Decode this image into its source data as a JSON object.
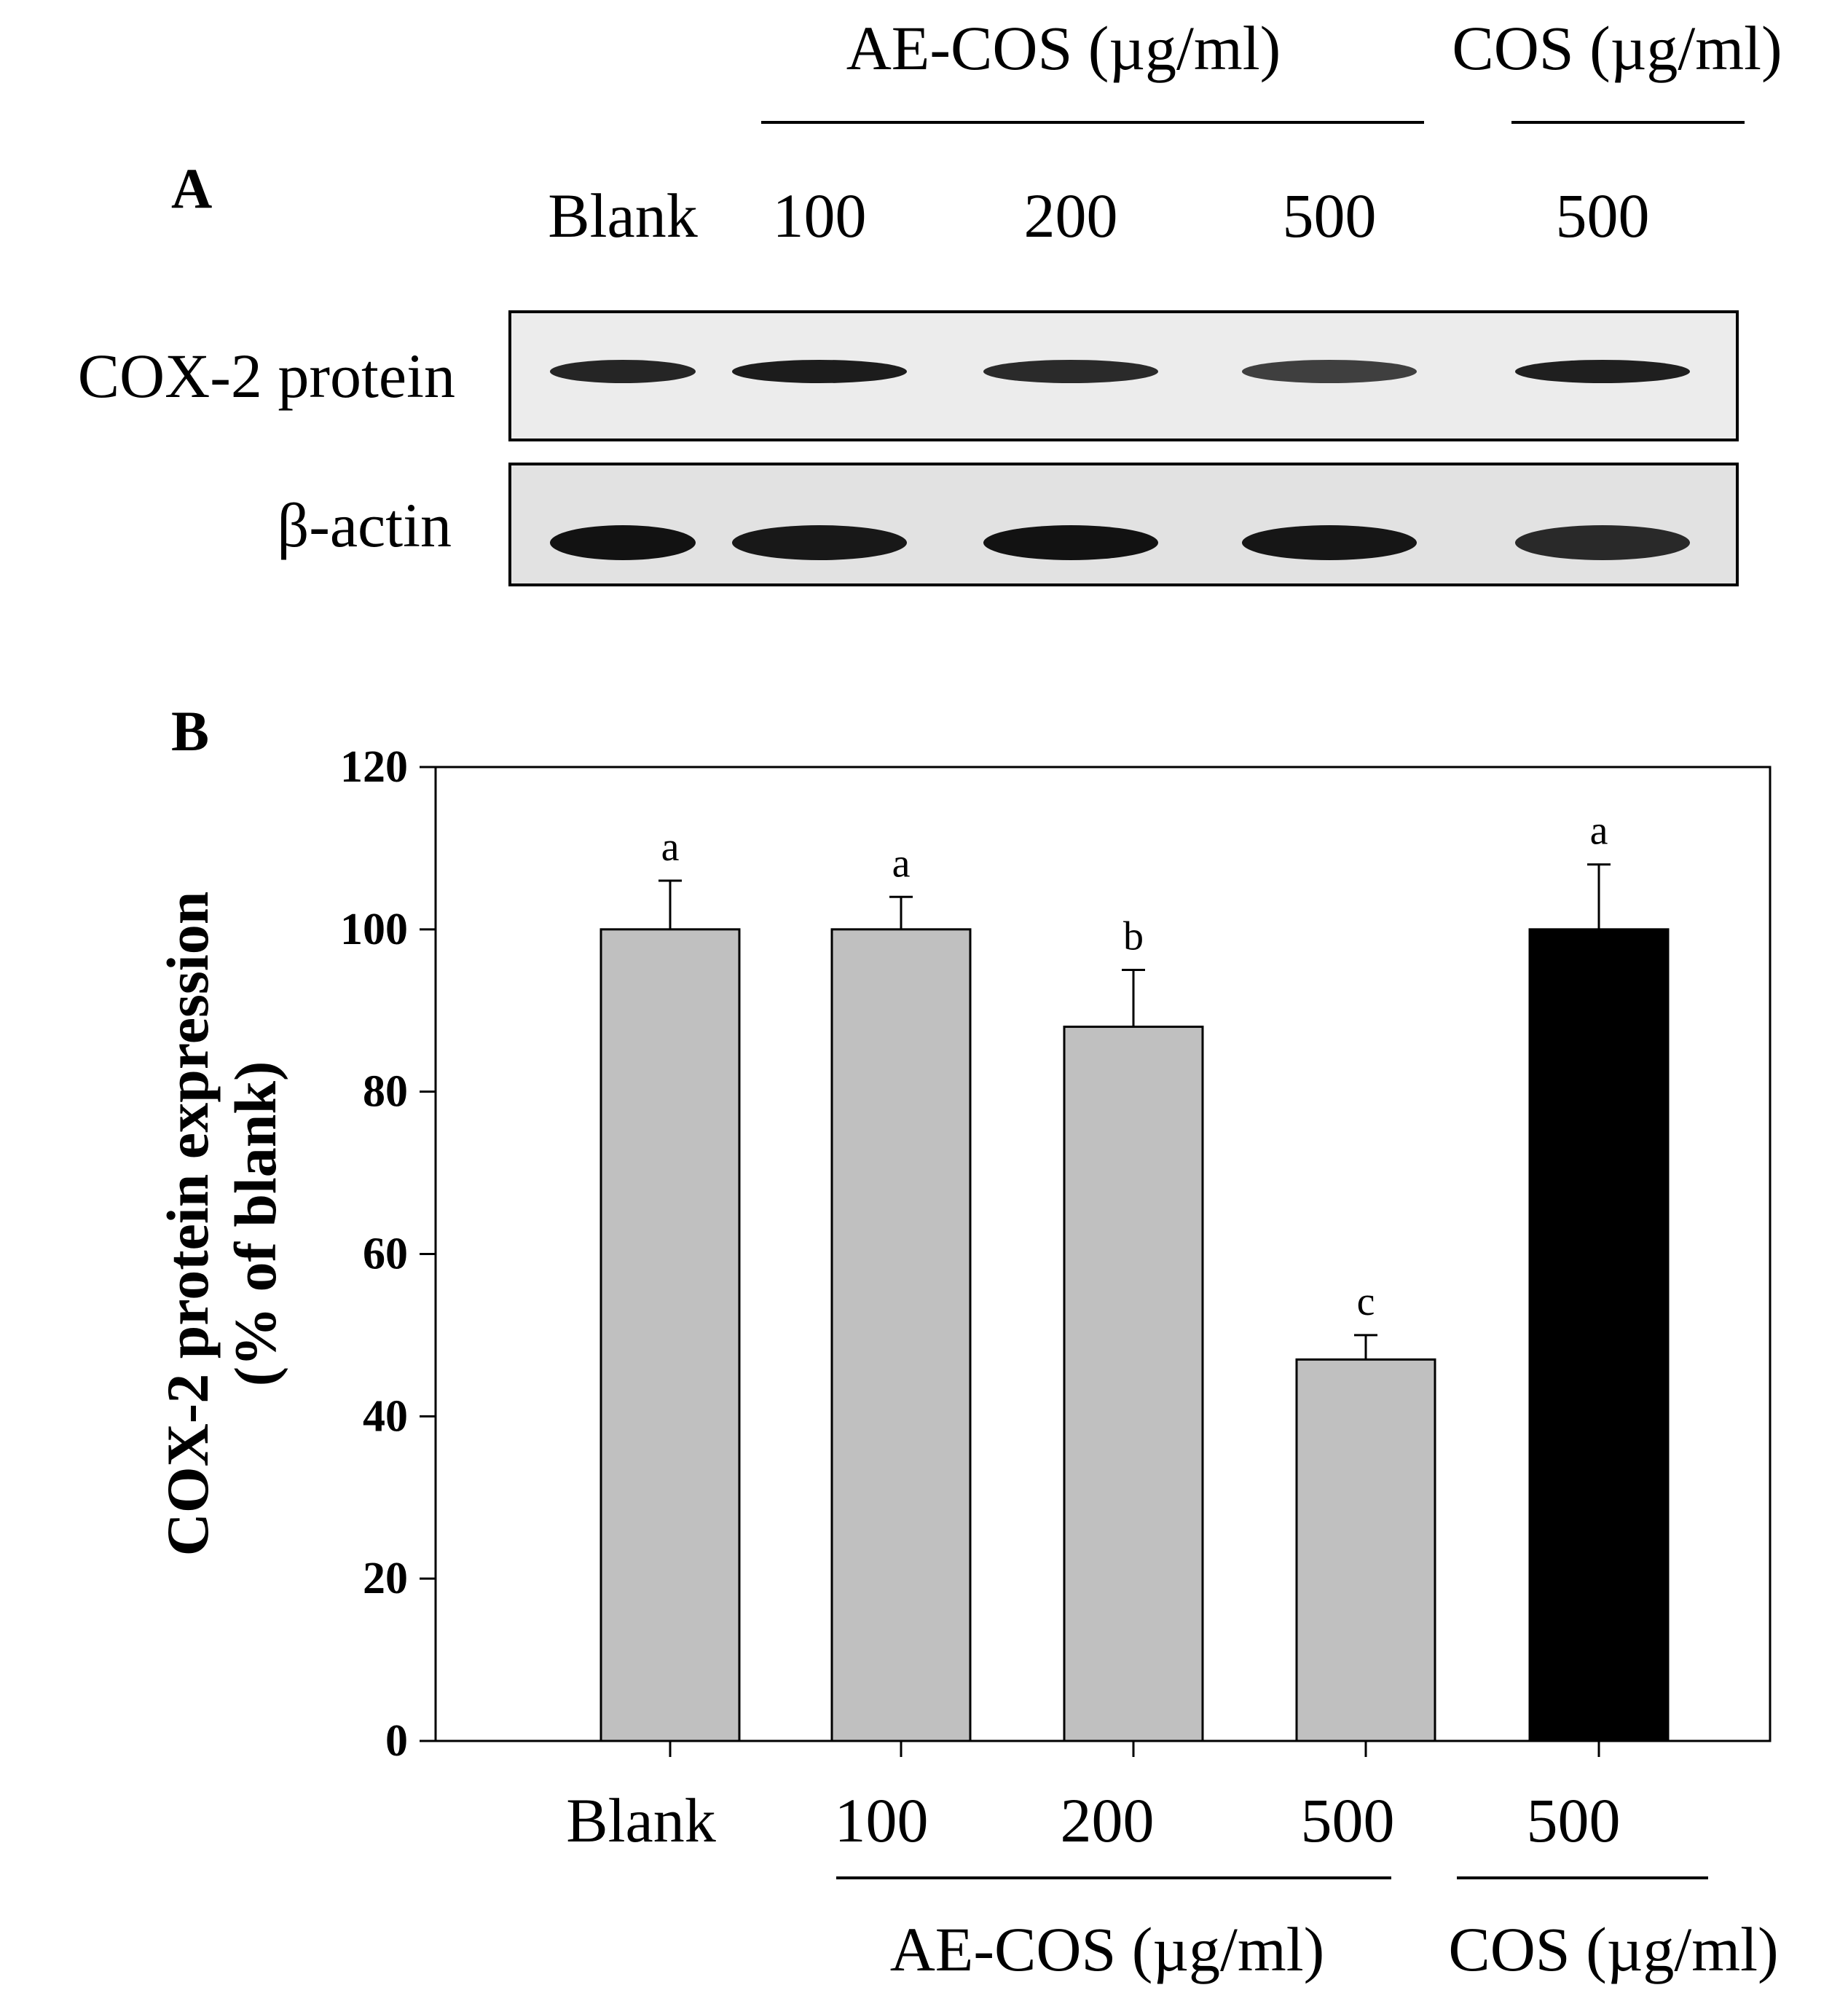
{
  "panel_a": {
    "label": "A",
    "group_headers": [
      "AE-COS (µg/ml)",
      "COS (µg/ml)"
    ],
    "lane_labels": [
      "Blank",
      "100",
      "200",
      "500",
      "500"
    ],
    "rows": [
      {
        "label": "COX-2 protein",
        "band_intensity": [
          0.85,
          0.92,
          0.8,
          0.62,
          0.9
        ]
      },
      {
        "label": "β-actin",
        "band_intensity": [
          1.0,
          0.95,
          1.0,
          0.97,
          0.8
        ]
      }
    ]
  },
  "chart_data": {
    "type": "bar",
    "panel_label": "B",
    "categories": [
      "Blank",
      "100",
      "200",
      "500",
      "500"
    ],
    "groups": [
      {
        "label": "AE-COS (µg/ml)",
        "categories": [
          "100",
          "200",
          "500"
        ]
      },
      {
        "label": "COS (µg/ml)",
        "categories": [
          "500"
        ]
      }
    ],
    "values": [
      100,
      100,
      88,
      47,
      100
    ],
    "errors": [
      6,
      4,
      7,
      3,
      8
    ],
    "significance": [
      "a",
      "a",
      "b",
      "c",
      "a"
    ],
    "bar_colors": [
      "#c0c0c0",
      "#c0c0c0",
      "#c0c0c0",
      "#c0c0c0",
      "#000000"
    ],
    "ylabel": "COX-2 protein expression",
    "ylabel_line2": "(% of blank)",
    "yticks": [
      "0",
      "20",
      "40",
      "60",
      "80",
      "100",
      "120"
    ],
    "ylim": [
      0,
      120
    ],
    "xlabel": ""
  }
}
